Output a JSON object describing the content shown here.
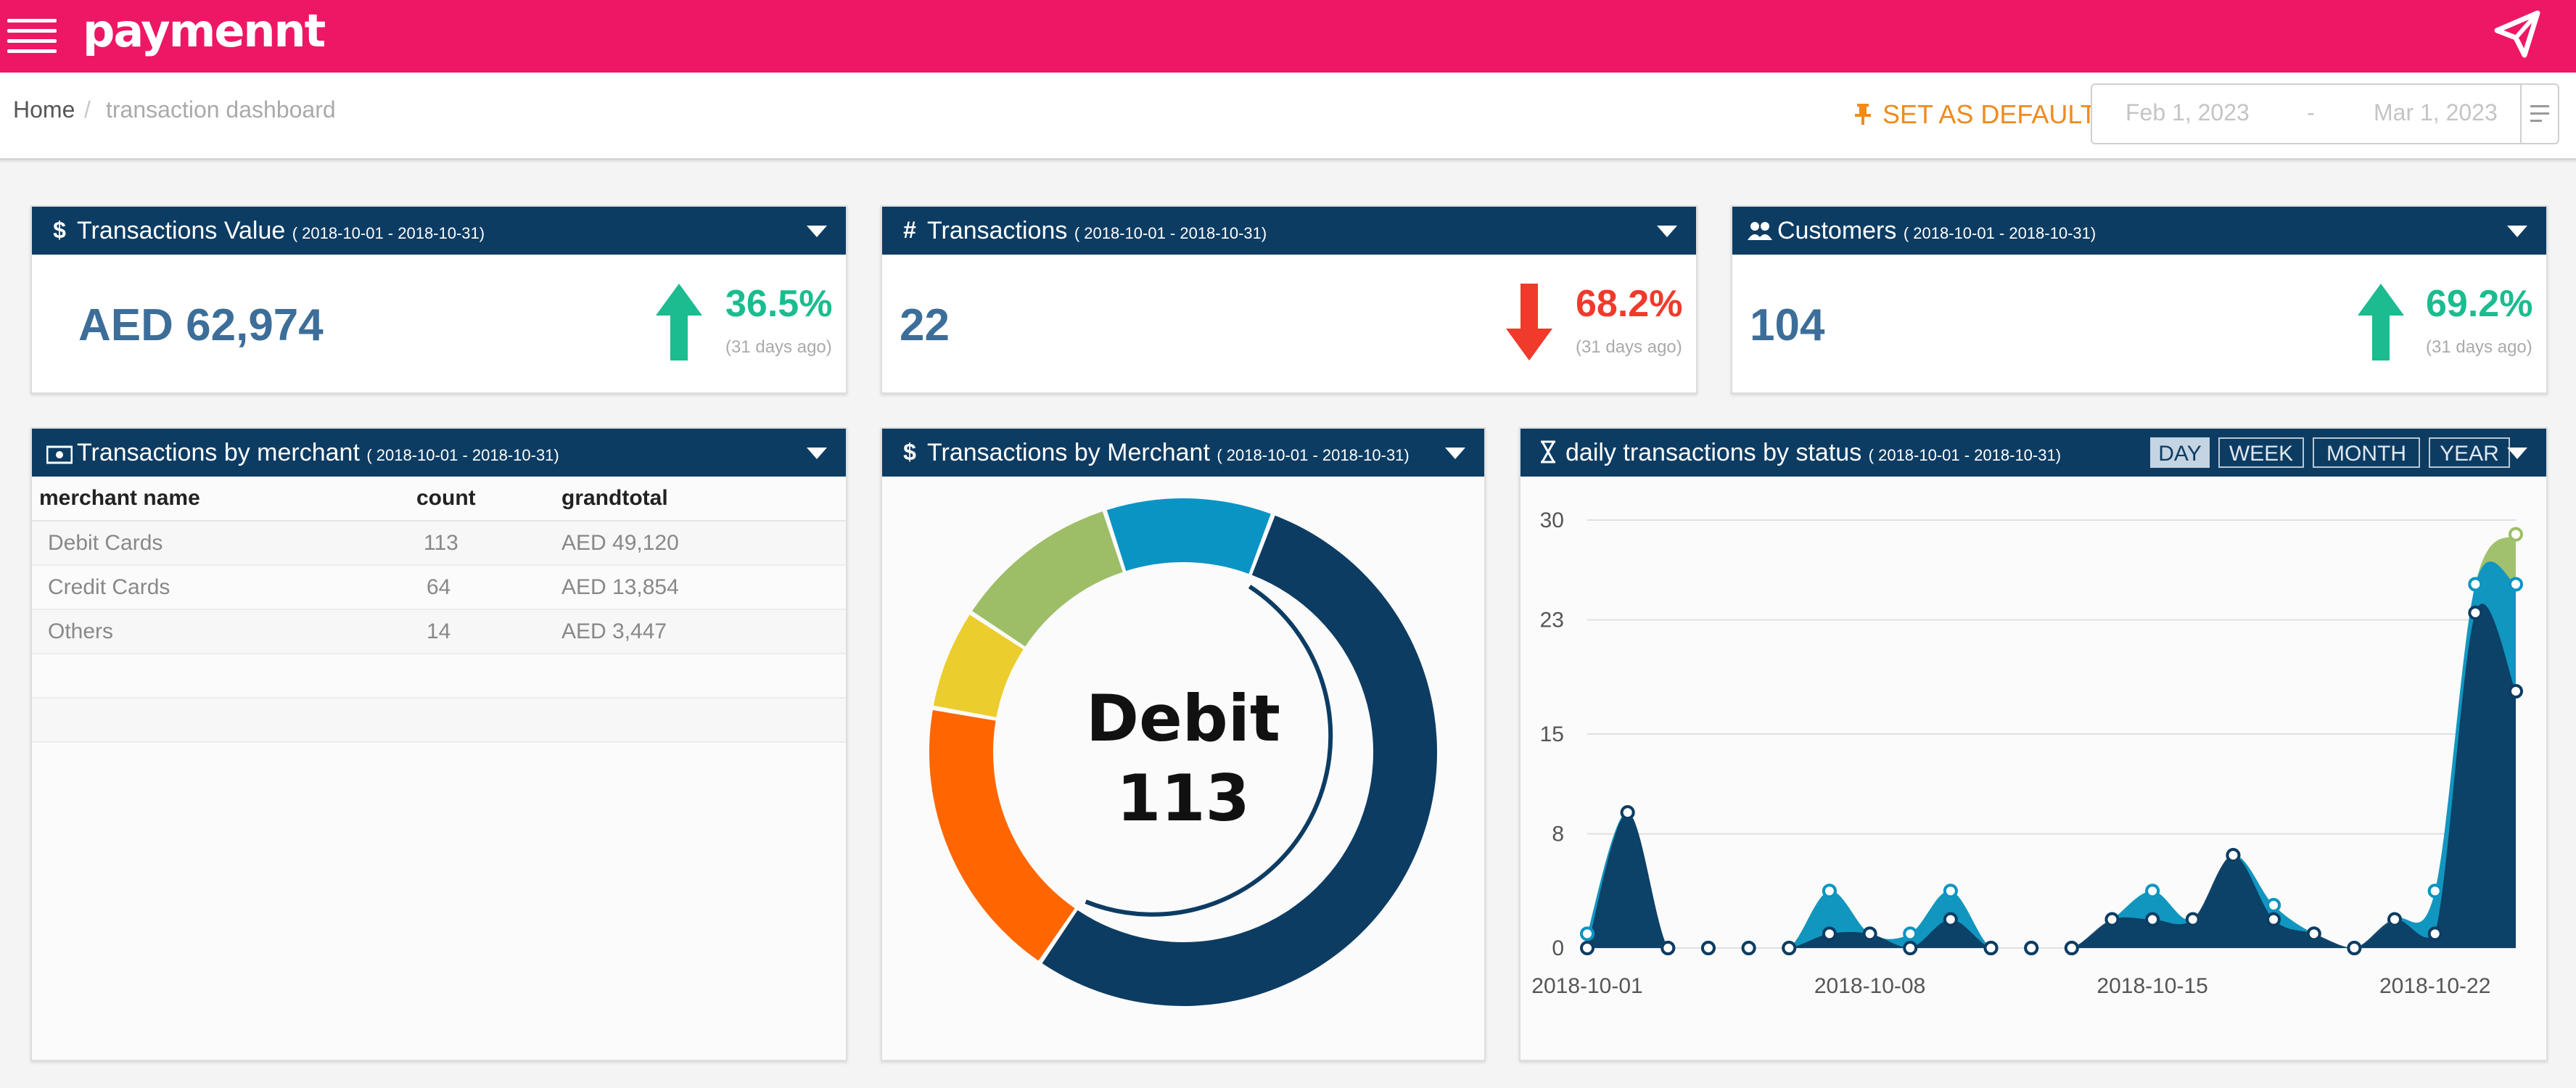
{
  "app": {
    "logo_text": "paymennt",
    "brand_color": "#ee1766",
    "header_color": "#0d3c63"
  },
  "icons": {
    "menu": "hamburger-icon",
    "notify": "paper-plane-icon"
  },
  "breadcrumb": {
    "home": "Home",
    "separator": "/",
    "current": "transaction dashboard"
  },
  "toolbar": {
    "set_default_label": "SET AS DEFAULT",
    "date_from_placeholder": "Feb 1, 2023",
    "date_separator": "-",
    "date_to_placeholder": "Mar 1, 2023"
  },
  "kpis": [
    {
      "icon": "$",
      "title": "Transactions Value",
      "range": "( 2018-10-01 - 2018-10-31)",
      "value": "AED 62,974",
      "change": "36.5%",
      "direction": "up",
      "ago": "(31 days ago)",
      "color": "#1bbc8f"
    },
    {
      "icon": "#",
      "title": "Transactions",
      "range": "( 2018-10-01 - 2018-10-31)",
      "value": "22",
      "change": "68.2%",
      "direction": "down",
      "ago": "(31 days ago)",
      "color": "#f03a2b"
    },
    {
      "icon": "users",
      "title": "Customers",
      "range": "( 2018-10-01 - 2018-10-31)",
      "value": "104",
      "change": "69.2%",
      "direction": "up",
      "ago": "(31 days ago)",
      "color": "#1bbc8f"
    }
  ],
  "merchant_table": {
    "title": "Transactions by merchant",
    "range": "( 2018-10-01 - 2018-10-31)",
    "columns": [
      "merchant name",
      "count",
      "grandtotal"
    ],
    "rows": [
      [
        "Debit Cards",
        "113",
        "AED 49,120"
      ],
      [
        "Credit Cards",
        "64",
        "AED 13,854"
      ],
      [
        "Others",
        "14",
        "AED 3,447"
      ]
    ]
  },
  "donut": {
    "title": "Transactions by Merchant",
    "range": "( 2018-10-01 - 2018-10-31)",
    "center_label": "Debit",
    "center_value": "113"
  },
  "daily": {
    "title": "daily transactions by status",
    "range": "( 2018-10-01 - 2018-10-31)",
    "buttons": [
      "DAY",
      "WEEK",
      "MONTH",
      "YEAR"
    ],
    "active_button": "DAY"
  },
  "chart_data": [
    {
      "type": "pie",
      "title": "Transactions by Merchant",
      "subtitle": "( 2018-10-01 - 2018-10-31)",
      "slices": [
        {
          "value": 50,
          "color": "#0d3c63"
        },
        {
          "value": 17,
          "color": "#ff6600"
        },
        {
          "value": 6,
          "color": "#ebcd2e"
        },
        {
          "value": 10,
          "color": "#9dbe66"
        },
        {
          "value": 10,
          "color": "#0a94c4"
        }
      ],
      "center_text": [
        "Debit",
        "113"
      ]
    },
    {
      "type": "area",
      "title": "daily transactions by status",
      "subtitle": "( 2018-10-01 - 2018-10-31)",
      "ylim": [
        0,
        30
      ],
      "yticks": [
        0,
        8,
        15,
        23,
        30
      ],
      "xticks": [
        {
          "day": 0,
          "label": "2018-10-01"
        },
        {
          "day": 7,
          "label": "2018-10-08"
        },
        {
          "day": 14,
          "label": "2018-10-15"
        },
        {
          "day": 21,
          "label": "2018-10-22"
        }
      ],
      "x": [
        0,
        1,
        2,
        3,
        4,
        5,
        6,
        7,
        8,
        9,
        10,
        11,
        12,
        13,
        14,
        15,
        16,
        17,
        18,
        19,
        20,
        21,
        22,
        23
      ],
      "series": [
        {
          "values": [
            0,
            9.5,
            0,
            0,
            0,
            0,
            1,
            1,
            0,
            2,
            0,
            0,
            0,
            2,
            2,
            2,
            6.5,
            2,
            1,
            0,
            2,
            1,
            23.5,
            18
          ],
          "color": "#0d3c63"
        },
        {
          "values": [
            1,
            9.5,
            0,
            0,
            0,
            0,
            4,
            1,
            1,
            4,
            0,
            0,
            0,
            2,
            4,
            2,
            6.5,
            3,
            1,
            0,
            2,
            4,
            25.5,
            25.5
          ],
          "color": "#0a94c4"
        },
        {
          "values": [
            1,
            9.5,
            0,
            0,
            0,
            0,
            4,
            1,
            1,
            4,
            0,
            0,
            0,
            2,
            4,
            2,
            6.5,
            3,
            1,
            0,
            2,
            4,
            25.5,
            29
          ],
          "color": "#9dbe66"
        }
      ],
      "grid": true
    }
  ]
}
